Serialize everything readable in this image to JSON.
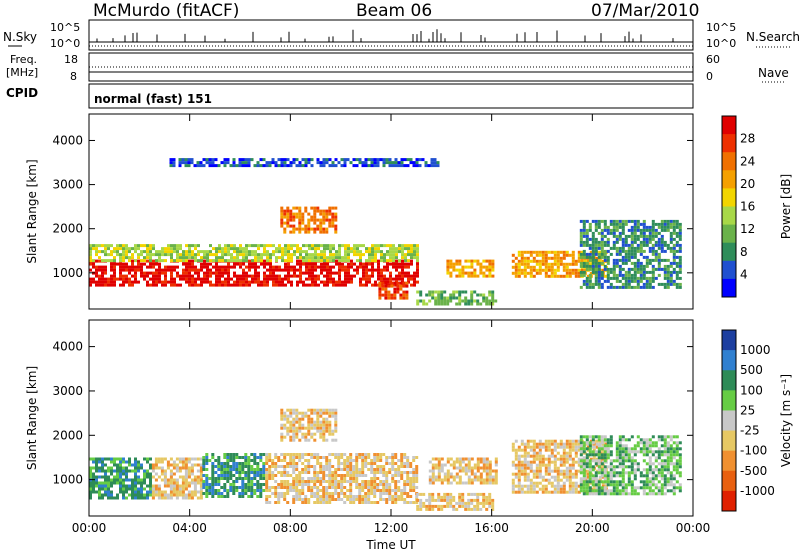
{
  "header": {
    "station": "McMurdo (fitACF)",
    "beam": "Beam 06",
    "date": "07/Mar/2010"
  },
  "top_panels": {
    "nsky_label": "N.Sky",
    "nsky_ticks": [
      "10^5",
      "10^0"
    ],
    "nsearch_label": "N.Search",
    "nsearch_ticks": [
      "10^5",
      "10^0"
    ],
    "freq_label_1": "Freq.",
    "freq_label_2": "[MHz]",
    "freq_ticks": [
      "18",
      "8"
    ],
    "nave_label": "Nave",
    "nave_ticks": [
      "60",
      "0"
    ],
    "cpid_label": "CPID",
    "cpid_value": "normal (fast) 151"
  },
  "colors": {
    "power": [
      "#0000ff",
      "#2050d0",
      "#2f8d5a",
      "#6ab24a",
      "#a8d848",
      "#f2d500",
      "#f5a000",
      "#f07000",
      "#ee3000",
      "#e00000"
    ],
    "velocity": [
      "#1d3fa0",
      "#3080d0",
      "#2e8b57",
      "#66cc44",
      "#c8c8c8",
      "#e6c864",
      "#f09030",
      "#e86010",
      "#e02000"
    ]
  },
  "chart_data": [
    {
      "type": "heatmap",
      "name": "power-panel",
      "ylabel": "Slant Range [km]",
      "xlabel": "",
      "x_ticks": [
        "00:00",
        "04:00",
        "08:00",
        "12:00",
        "16:00",
        "20:00",
        "00:00"
      ],
      "x_range_hours": [
        0,
        24
      ],
      "y_ticks": [
        1000,
        2000,
        3000,
        4000
      ],
      "y_range_km": [
        180,
        4600
      ],
      "colorbar_label": "Power [dB]",
      "colorbar_ticks": [
        "4",
        "8",
        "12",
        "16",
        "20",
        "24",
        "28"
      ],
      "colorbar_range": [
        0,
        30
      ],
      "echo_regions": [
        {
          "t0": 0.0,
          "t1": 13.0,
          "r0": 700,
          "r1": 1300,
          "value": 26
        },
        {
          "t0": 0.0,
          "t1": 13.0,
          "r0": 1300,
          "r1": 1650,
          "value": 12
        },
        {
          "t0": 7.6,
          "t1": 9.8,
          "r0": 1900,
          "r1": 2500,
          "value": 20
        },
        {
          "t0": 11.5,
          "t1": 12.6,
          "r0": 400,
          "r1": 800,
          "value": 24
        },
        {
          "t0": 13.0,
          "t1": 16.2,
          "r0": 300,
          "r1": 600,
          "value": 8
        },
        {
          "t0": 14.2,
          "t1": 16.0,
          "r0": 900,
          "r1": 1300,
          "value": 18
        },
        {
          "t0": 16.8,
          "t1": 20.5,
          "r0": 900,
          "r1": 1500,
          "value": 18
        },
        {
          "t0": 19.5,
          "t1": 23.5,
          "r0": 700,
          "r1": 2200,
          "value": 6
        },
        {
          "t0": 3.2,
          "t1": 14.0,
          "r0": 3400,
          "r1": 3600,
          "value": 4
        }
      ]
    },
    {
      "type": "heatmap",
      "name": "velocity-panel",
      "ylabel": "Slant Range [km]",
      "xlabel": "Time UT",
      "x_ticks": [
        "00:00",
        "04:00",
        "08:00",
        "12:00",
        "16:00",
        "20:00",
        "00:00"
      ],
      "x_range_hours": [
        0,
        24
      ],
      "y_ticks": [
        1000,
        2000,
        3000,
        4000
      ],
      "y_range_km": [
        180,
        4600
      ],
      "colorbar_label": "Velocity [m s⁻¹]",
      "colorbar_ticks": [
        "1000",
        "500",
        "100",
        "25",
        "-25",
        "-100",
        "-500",
        "-1000"
      ],
      "echo_regions": [
        {
          "t0": 0.0,
          "t1": 2.5,
          "r0": 600,
          "r1": 1500,
          "value": 100
        },
        {
          "t0": 2.5,
          "t1": 4.5,
          "r0": 600,
          "r1": 1500,
          "value": -100
        },
        {
          "t0": 4.5,
          "t1": 7.0,
          "r0": 600,
          "r1": 1600,
          "value": 100
        },
        {
          "t0": 7.0,
          "t1": 13.0,
          "r0": 500,
          "r1": 1600,
          "value": -100
        },
        {
          "t0": 7.6,
          "t1": 9.8,
          "r0": 1900,
          "r1": 2600,
          "value": -100
        },
        {
          "t0": 13.0,
          "t1": 16.0,
          "r0": 300,
          "r1": 700,
          "value": -100
        },
        {
          "t0": 13.5,
          "t1": 16.2,
          "r0": 900,
          "r1": 1500,
          "value": -100
        },
        {
          "t0": 16.8,
          "t1": 20.5,
          "r0": 700,
          "r1": 1900,
          "value": -100
        },
        {
          "t0": 19.5,
          "t1": 23.5,
          "r0": 700,
          "r1": 2000,
          "value": 25
        }
      ]
    }
  ]
}
